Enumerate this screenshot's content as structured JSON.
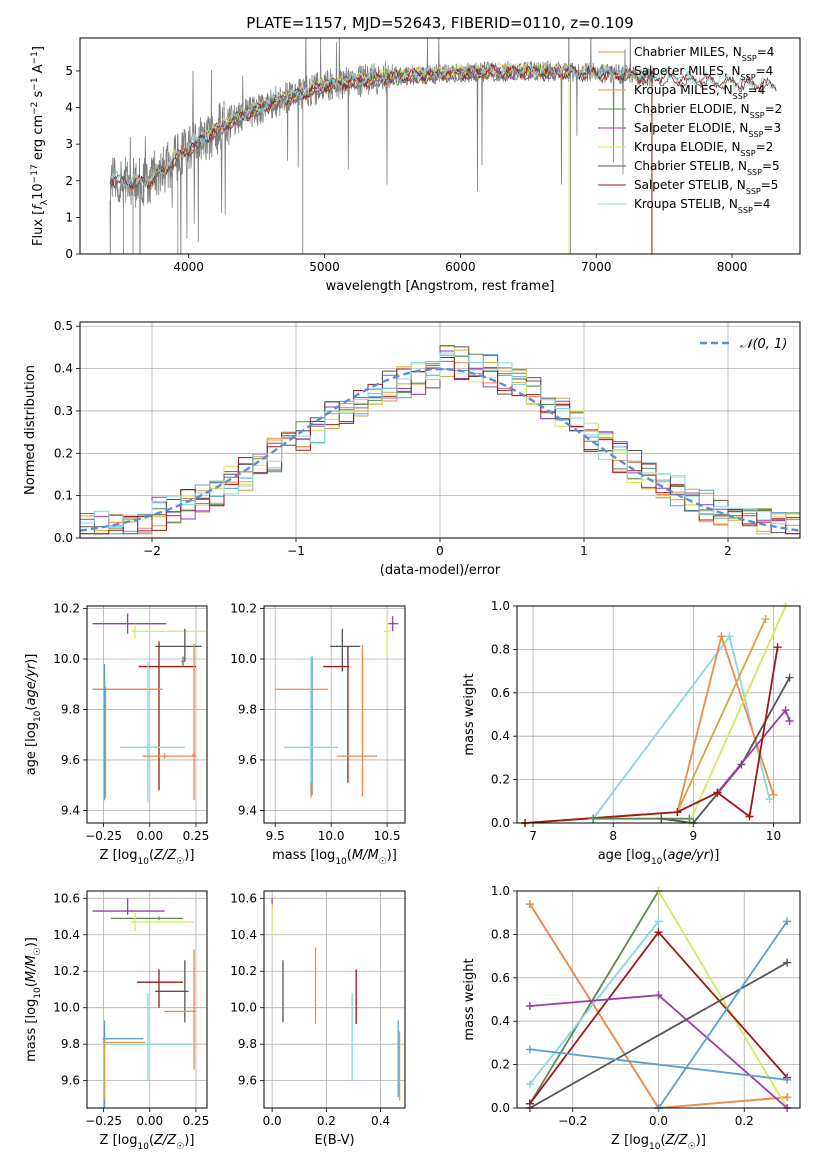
{
  "figure": {
    "title": "PLATE=1157, MJD=52643, FIBERID=0110, z=0.109"
  },
  "colors": {
    "Chabrier MILES": "#f08a4b",
    "Salpeter MILES": "#5aa0d8",
    "Kroupa MILES": "#d9a441",
    "Chabrier ELODIE": "#5a8a50",
    "Salpeter ELODIE": "#a03ab0",
    "Kroupa ELODIE": "#d8e85a",
    "Chabrier STELIB": "#555555",
    "Salpeter STELIB": "#a01818",
    "Kroupa STELIB": "#88d8e0",
    "data": "#808080",
    "gaussian": "#5b8ed6"
  },
  "chart_data": [
    {
      "id": "spectrum",
      "type": "line",
      "xlabel": "wavelength [Angstrom, rest frame]",
      "ylabel": "Flux [f_λ 10^-17 erg cm^-2 s^-1 A^-1]",
      "xlim": [
        3200,
        8500
      ],
      "ylim": [
        0,
        5.9
      ],
      "xticks": [
        4000,
        5000,
        6000,
        7000,
        8000
      ],
      "yticks": [
        0,
        1,
        2,
        3,
        4,
        5
      ],
      "legend": {
        "placement": "top-right",
        "entries": [
          {
            "name": "Chabrier MILES",
            "label": "Chabrier MILES, N",
            "sub": "SSP",
            "suffix": "=4"
          },
          {
            "name": "Salpeter MILES",
            "label": "Salpeter MILES, N",
            "sub": "SSP",
            "suffix": "=4"
          },
          {
            "name": "Kroupa MILES",
            "label": "Kroupa MILES, N",
            "sub": "SSP",
            "suffix": "=4"
          },
          {
            "name": "Chabrier ELODIE",
            "label": "Chabrier ELODIE, N",
            "sub": "SSP",
            "suffix": "=2"
          },
          {
            "name": "Salpeter ELODIE",
            "label": "Salpeter ELODIE, N",
            "sub": "SSP",
            "suffix": "=3"
          },
          {
            "name": "Kroupa ELODIE",
            "label": "Kroupa ELODIE, N",
            "sub": "SSP",
            "suffix": "=2"
          },
          {
            "name": "Chabrier STELIB",
            "label": "Chabrier STELIB, N",
            "sub": "SSP",
            "suffix": "=5"
          },
          {
            "name": "Salpeter STELIB",
            "label": "Salpeter STELIB, N",
            "sub": "SSP",
            "suffix": "=5"
          },
          {
            "name": "Kroupa STELIB",
            "label": "Kroupa STELIB, N",
            "sub": "SSP",
            "suffix": "=4"
          }
        ]
      },
      "continuum": {
        "x": [
          3450,
          3600,
          3800,
          4000,
          4300,
          4600,
          5000,
          5500,
          6000,
          6500,
          7000,
          7400,
          7800,
          8300
        ],
        "y": [
          2.2,
          2.1,
          2.25,
          2.9,
          3.6,
          4.1,
          4.6,
          4.85,
          4.95,
          5.0,
          4.95,
          4.85,
          4.75,
          4.6
        ]
      },
      "data_range": [
        3420,
        7420
      ],
      "model_ranges": {
        "STELIB": [
          3420,
          8330
        ],
        "MILES": [
          3540,
          7410
        ],
        "ELODIE": [
          4000,
          6800
        ]
      }
    },
    {
      "id": "residuals",
      "type": "step",
      "xlabel": "(data-model)/error",
      "ylabel": "Normed distribution",
      "xlim": [
        -2.5,
        2.5
      ],
      "ylim": [
        0,
        0.51
      ],
      "xticks": [
        -2,
        -1,
        0,
        1,
        2
      ],
      "yticks": [
        0.0,
        0.1,
        0.2,
        0.3,
        0.4,
        0.5
      ],
      "legend": {
        "placement": "top-right",
        "label": "𝒩(0, 1)"
      },
      "gaussian": {
        "mean": 0,
        "sigma": 1
      },
      "bin_width": 0.1
    },
    {
      "id": "age-vs-Z",
      "type": "errorbar",
      "xlabel": "Z [log10(Z/Z☉)]",
      "ylabel": "age  [log10(age/yr)]",
      "xlim": [
        -0.34,
        0.31
      ],
      "ylim": [
        9.35,
        10.21
      ],
      "xticks": [
        -0.25,
        0.0,
        0.25
      ],
      "yticks": [
        9.4,
        9.6,
        9.8,
        10.0,
        10.2
      ],
      "points": [
        {
          "model": "Salpeter ELODIE",
          "x": -0.12,
          "xerr": [
            0.19,
            0.21
          ],
          "y": 10.14,
          "yerr": [
            0.04,
            0.04
          ]
        },
        {
          "model": "Kroupa ELODIE",
          "x": -0.08,
          "xerr": [
            0.02,
            0.39
          ],
          "y": 10.11,
          "yerr": [
            0.03,
            0.03
          ]
        },
        {
          "model": "Chabrier STELIB",
          "x": 0.19,
          "xerr": [
            0.16,
            0.09
          ],
          "y": 10.05,
          "yerr": [
            0.06,
            0.07
          ]
        },
        {
          "model": "Salpeter STELIB",
          "x": 0.05,
          "xerr": [
            0.11,
            0.2
          ],
          "y": 9.97,
          "yerr": [
            0.49,
            0.1
          ]
        },
        {
          "model": "Chabrier ELODIE",
          "x": 0.18,
          "xerr": [
            0.01,
            0.01
          ],
          "y": 9.99,
          "yerr": [
            0.02,
            0.02
          ]
        },
        {
          "model": "Kroupa MILES",
          "x": -0.24,
          "xerr": [
            0.07,
            0.31
          ],
          "y": 9.88,
          "yerr": [
            0.43,
            0.01
          ]
        },
        {
          "model": "Chabrier MILES",
          "x": -0.24,
          "xerr": [
            0.07,
            0.31
          ],
          "y": 9.88,
          "yerr": [
            0.43,
            0.01
          ]
        },
        {
          "model": "Salpeter MILES",
          "x": -0.245,
          "xerr": [
            0.01,
            0.01
          ],
          "y": 9.88,
          "yerr": [
            0.44,
            0.1
          ]
        },
        {
          "model": "Kroupa STELIB",
          "x": -0.01,
          "xerr": [
            0.15,
            0.2
          ],
          "y": 9.65,
          "yerr": [
            0.2,
            0.34
          ]
        },
        {
          "model": "Kroupa STELIB",
          "x": -0.01,
          "xerr": [
            0.01,
            0.01
          ],
          "y": 9.65,
          "yerr": [
            0.22,
            0.01
          ]
        },
        {
          "model": "Chabrier MILES",
          "x": 0.24,
          "xerr": [
            0.01,
            0.01
          ],
          "y": 9.62,
          "yerr": [
            0.18,
            0.44
          ]
        },
        {
          "model": "Chabrier MILES",
          "x": 0.08,
          "xerr": [
            0.12,
            0.17
          ],
          "y": 9.615,
          "yerr": [
            0.01,
            0.01
          ]
        }
      ]
    },
    {
      "id": "age-vs-mass",
      "type": "errorbar",
      "xlabel": "mass [log10(M/M☉)]",
      "ylabel": "",
      "xlim": [
        9.4,
        10.66
      ],
      "ylim": [
        9.35,
        10.21
      ],
      "xticks": [
        9.5,
        10.0,
        10.5
      ],
      "yticks": [
        9.4,
        9.6,
        9.8,
        10.0,
        10.2
      ],
      "points": [
        {
          "model": "Salpeter ELODIE",
          "x": 10.55,
          "xerr": [
            0.04,
            0.05
          ],
          "y": 10.14,
          "yerr": [
            0.03,
            0.03
          ]
        },
        {
          "model": "Kroupa ELODIE",
          "x": 10.5,
          "xerr": [
            0.03,
            0.03
          ],
          "y": 10.11,
          "yerr": [
            0.1,
            0.06
          ]
        },
        {
          "model": "Chabrier STELIB",
          "x": 10.1,
          "xerr": [
            0.11,
            0.16
          ],
          "y": 10.05,
          "yerr": [
            0.1,
            0.07
          ]
        },
        {
          "model": "Salpeter STELIB",
          "x": 10.15,
          "xerr": [
            0.22,
            0.01
          ],
          "y": 9.97,
          "yerr": [
            0.46,
            0.08
          ]
        },
        {
          "model": "Chabrier MILES",
          "x": 9.82,
          "xerr": [
            0.32,
            0.15
          ],
          "y": 9.88,
          "yerr": [
            0.43,
            0.01
          ]
        },
        {
          "model": "Salpeter MILES",
          "x": 9.83,
          "xerr": [
            0.01,
            0.01
          ],
          "y": 9.88,
          "yerr": [
            0.42,
            0.13
          ]
        },
        {
          "model": "Kroupa STELIB",
          "x": 9.82,
          "xerr": [
            0.24,
            0.24
          ],
          "y": 9.65,
          "yerr": [
            0.14,
            0.36
          ]
        },
        {
          "model": "Chabrier MILES",
          "x": 10.28,
          "xerr": [
            0.23,
            0.13
          ],
          "y": 9.615,
          "yerr": [
            0.16,
            0.44
          ]
        }
      ]
    },
    {
      "id": "weight-vs-age",
      "type": "line",
      "xlabel": "age  [log10(age/yr)]",
      "ylabel": "mass weight",
      "xlim": [
        6.8,
        10.33
      ],
      "ylim": [
        0,
        1.0
      ],
      "xticks": [
        7,
        8,
        9,
        10
      ],
      "yticks": [
        0.0,
        0.2,
        0.4,
        0.6,
        0.8,
        1.0
      ],
      "series": [
        {
          "model": "Kroupa STELIB",
          "x": [
            7.75,
            9.45,
            9.95
          ],
          "y": [
            0.02,
            0.86,
            0.11
          ]
        },
        {
          "model": "Chabrier MILES",
          "x": [
            6.9,
            8.8,
            9.35,
            10.0
          ],
          "y": [
            0.0,
            0.05,
            0.86,
            0.13
          ]
        },
        {
          "model": "Kroupa MILES",
          "x": [
            6.9,
            8.8,
            9.9
          ],
          "y": [
            0.0,
            0.05,
            0.94
          ]
        },
        {
          "model": "Kroupa ELODIE",
          "x": [
            8.95,
            10.15
          ],
          "y": [
            0.0,
            1.0
          ]
        },
        {
          "model": "Chabrier STELIB",
          "x": [
            8.6,
            9.0,
            9.6,
            10.2
          ],
          "y": [
            0.02,
            0.0,
            0.27,
            0.67
          ]
        },
        {
          "model": "Salpeter ELODIE",
          "x": [
            9.3,
            10.15,
            10.2
          ],
          "y": [
            0.14,
            0.52,
            0.47
          ]
        },
        {
          "model": "Salpeter STELIB",
          "x": [
            6.9,
            8.8,
            9.3,
            9.7,
            10.05
          ],
          "y": [
            0.0,
            0.05,
            0.14,
            0.03,
            0.81
          ]
        },
        {
          "model": "Chabrier ELODIE",
          "x": [
            7.75,
            8.95
          ],
          "y": [
            0.02,
            0.02
          ]
        }
      ]
    },
    {
      "id": "mass-vs-Z",
      "type": "errorbar",
      "xlabel": "Z [log10(Z/Z☉)]",
      "ylabel": "mass [log10(M/M☉)]",
      "xlim": [
        -0.34,
        0.31
      ],
      "ylim": [
        9.45,
        10.64
      ],
      "xticks": [
        -0.25,
        0.0,
        0.25
      ],
      "yticks": [
        9.6,
        9.8,
        10.0,
        10.2,
        10.4,
        10.6
      ],
      "points": [
        {
          "model": "Salpeter ELODIE",
          "x": -0.12,
          "xerr": [
            0.19,
            0.2
          ],
          "y": 10.53,
          "yerr": [
            0.02,
            0.07
          ]
        },
        {
          "model": "Chabrier ELODIE",
          "x": 0.05,
          "xerr": [
            0.26,
            0.13
          ],
          "y": 10.49,
          "yerr": [
            0.01,
            0.01
          ]
        },
        {
          "model": "Kroupa ELODIE",
          "x": -0.08,
          "xerr": [
            0.02,
            0.32
          ],
          "y": 10.47,
          "yerr": [
            0.05,
            0.05
          ]
        },
        {
          "model": "Salpeter STELIB",
          "x": 0.05,
          "xerr": [
            0.12,
            0.13
          ],
          "y": 10.14,
          "yerr": [
            0.14,
            0.07
          ]
        },
        {
          "model": "Chabrier STELIB",
          "x": 0.19,
          "xerr": [
            0.16,
            0.02
          ],
          "y": 10.09,
          "yerr": [
            0.17,
            0.17
          ]
        },
        {
          "model": "Chabrier MILES",
          "x": 0.24,
          "xerr": [
            0.16,
            0.01
          ],
          "y": 9.98,
          "yerr": [
            0.32,
            0.34
          ]
        },
        {
          "model": "Salpeter MILES",
          "x": -0.245,
          "xerr": [
            0.01,
            0.21
          ],
          "y": 9.83,
          "yerr": [
            0.38,
            0.1
          ]
        },
        {
          "model": "Kroupa MILES",
          "x": -0.245,
          "xerr": [
            0.01,
            0.22
          ],
          "y": 9.81,
          "yerr": [
            0.31,
            0.01
          ]
        },
        {
          "model": "Kroupa STELIB",
          "x": -0.01,
          "xerr": [
            0.22,
            0.25
          ],
          "y": 9.8,
          "yerr": [
            0.2,
            0.28
          ]
        }
      ]
    },
    {
      "id": "mass-vs-EBV",
      "type": "errorbar",
      "xlabel": "E(B-V)",
      "ylabel": "",
      "xlim": [
        -0.03,
        0.49
      ],
      "ylim": [
        9.45,
        10.64
      ],
      "xticks": [
        0.0,
        0.2,
        0.4
      ],
      "yticks": [
        9.6,
        9.8,
        10.0,
        10.2,
        10.4,
        10.6
      ],
      "points": [
        {
          "model": "Salpeter ELODIE",
          "x": 0.0,
          "xerr": [
            0.0,
            0.0
          ],
          "y": 10.57,
          "yerr": [
            0.03,
            0.03
          ]
        },
        {
          "model": "Kroupa ELODIE",
          "x": 0.0,
          "xerr": [
            0.0,
            0.0
          ],
          "y": 10.47,
          "yerr": [
            0.08,
            0.1
          ]
        },
        {
          "model": "Chabrier STELIB",
          "x": 0.04,
          "xerr": [
            0.0,
            0.0
          ],
          "y": 10.09,
          "yerr": [
            0.17,
            0.17
          ]
        },
        {
          "model": "Chabrier MILES",
          "x": 0.16,
          "xerr": [
            0.0,
            0.0
          ],
          "y": 10.12,
          "yerr": [
            0.21,
            0.21
          ]
        },
        {
          "model": "Salpeter STELIB",
          "x": 0.31,
          "xerr": [
            0.0,
            0.0
          ],
          "y": 10.06,
          "yerr": [
            0.15,
            0.15
          ]
        },
        {
          "model": "Kroupa STELIB",
          "x": 0.295,
          "xerr": [
            0.0,
            0.0
          ],
          "y": 9.84,
          "yerr": [
            0.24,
            0.24
          ]
        },
        {
          "model": "Salpeter MILES",
          "x": 0.465,
          "xerr": [
            0.0,
            0.0
          ],
          "y": 9.72,
          "yerr": [
            0.21,
            0.21
          ]
        },
        {
          "model": "Kroupa MILES",
          "x": 0.47,
          "xerr": [
            0.0,
            0.0
          ],
          "y": 9.68,
          "yerr": [
            0.19,
            0.19
          ]
        }
      ]
    },
    {
      "id": "weight-vs-Z",
      "type": "line",
      "xlabel": "Z [log10(Z/Z☉)]",
      "ylabel": "mass weight",
      "xlim": [
        -0.33,
        0.33
      ],
      "ylim": [
        0,
        1.0
      ],
      "xticks": [
        -0.2,
        0.0,
        0.2
      ],
      "yticks": [
        0.0,
        0.2,
        0.4,
        0.6,
        0.8,
        1.0
      ],
      "series": [
        {
          "model": "Kroupa MILES",
          "x": [
            -0.3,
            0.0,
            0.3
          ],
          "y": [
            0.94,
            0.0,
            0.05
          ]
        },
        {
          "model": "Chabrier MILES",
          "x": [
            -0.3,
            0.0,
            0.3
          ],
          "y": [
            0.94,
            0.0,
            0.05
          ]
        },
        {
          "model": "Chabrier ELODIE",
          "x": [
            -0.3,
            0.0
          ],
          "y": [
            0.02,
            1.0
          ]
        },
        {
          "model": "Kroupa ELODIE",
          "x": [
            0.0,
            0.3
          ],
          "y": [
            1.0,
            0.0
          ]
        },
        {
          "model": "Kroupa STELIB",
          "x": [
            -0.3,
            0.0
          ],
          "y": [
            0.11,
            0.86
          ]
        },
        {
          "model": "Salpeter STELIB",
          "x": [
            -0.3,
            0.0,
            0.3
          ],
          "y": [
            0.02,
            0.81,
            0.14
          ]
        },
        {
          "model": "Salpeter ELODIE",
          "x": [
            -0.3,
            0.0,
            0.3
          ],
          "y": [
            0.47,
            0.52,
            0.0
          ]
        },
        {
          "model": "Chabrier STELIB",
          "x": [
            -0.3,
            0.3
          ],
          "y": [
            0.0,
            0.67
          ]
        },
        {
          "model": "Salpeter MILES",
          "x": [
            0.0,
            0.3
          ],
          "y": [
            0.0,
            0.86
          ]
        },
        {
          "model": "Salpeter MILES",
          "x": [
            -0.3,
            0.3
          ],
          "y": [
            0.27,
            0.13
          ]
        }
      ]
    }
  ]
}
